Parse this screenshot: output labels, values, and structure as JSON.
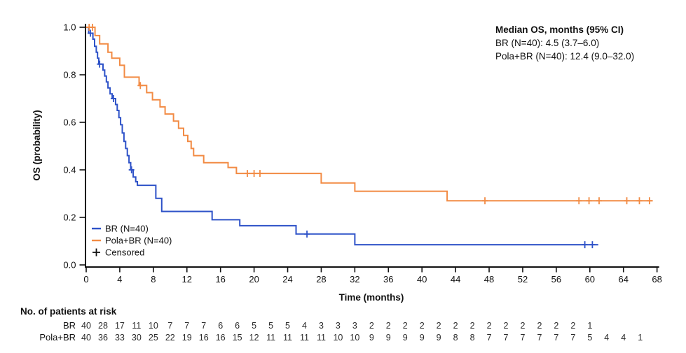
{
  "annotation": {
    "title": "Median OS, months (95% CI)",
    "line1": "BR (N=40): 4.5 (3.7–6.0)",
    "line2": "Pola+BR (N=40): 12.4 (9.0–32.0)"
  },
  "legend": {
    "censored_label": "Censored",
    "censored_color": "#111111"
  },
  "chart_data": {
    "type": "line",
    "subtype": "kaplan-meier-step",
    "title": "",
    "x_title": "Time (months)",
    "y_title": "OS (probability)",
    "xlim": [
      0,
      68
    ],
    "xtick_step": 4,
    "ylim": [
      0.0,
      1.0
    ],
    "ytick_step": 0.2,
    "grid": false,
    "legend_position": "inside-lower-left",
    "series": [
      {
        "key": "br",
        "name": "BR (N=40)",
        "color": "#2E52C8",
        "median_os_months": 4.5,
        "ci95": [
          3.7,
          6.0
        ],
        "steps": [
          [
            0,
            1.0
          ],
          [
            0.3,
            0.975
          ],
          [
            0.8,
            0.95
          ],
          [
            1.0,
            0.92
          ],
          [
            1.2,
            0.895
          ],
          [
            1.35,
            0.87
          ],
          [
            1.5,
            0.845
          ],
          [
            2.0,
            0.82
          ],
          [
            2.2,
            0.795
          ],
          [
            2.4,
            0.77
          ],
          [
            2.6,
            0.745
          ],
          [
            2.85,
            0.72
          ],
          [
            3.1,
            0.7
          ],
          [
            3.5,
            0.675
          ],
          [
            3.7,
            0.65
          ],
          [
            3.9,
            0.62
          ],
          [
            4.1,
            0.59
          ],
          [
            4.3,
            0.555
          ],
          [
            4.5,
            0.52
          ],
          [
            4.7,
            0.49
          ],
          [
            4.9,
            0.46
          ],
          [
            5.1,
            0.43
          ],
          [
            5.3,
            0.4
          ],
          [
            5.6,
            0.37
          ],
          [
            5.9,
            0.35
          ],
          [
            6.1,
            0.335
          ],
          [
            8.3,
            0.28
          ],
          [
            9.0,
            0.225
          ],
          [
            15.0,
            0.19
          ],
          [
            18.3,
            0.165
          ],
          [
            25.0,
            0.13
          ],
          [
            32.0,
            0.085
          ]
        ],
        "end_time": 61.0,
        "censors": [
          [
            0.5,
            0.975
          ],
          [
            1.6,
            0.845
          ],
          [
            3.25,
            0.7
          ],
          [
            5.4,
            0.4
          ],
          [
            26.3,
            0.13
          ],
          [
            59.4,
            0.085
          ],
          [
            60.3,
            0.085
          ]
        ]
      },
      {
        "key": "pola",
        "name": "Pola+BR (N=40)",
        "color": "#F28B44",
        "median_os_months": 12.4,
        "ci95": [
          9.0,
          32.0
        ],
        "steps": [
          [
            0,
            1.0
          ],
          [
            1.05,
            0.965
          ],
          [
            1.6,
            0.93
          ],
          [
            2.6,
            0.895
          ],
          [
            3.05,
            0.87
          ],
          [
            4.0,
            0.84
          ],
          [
            4.55,
            0.79
          ],
          [
            6.3,
            0.755
          ],
          [
            7.2,
            0.725
          ],
          [
            7.9,
            0.695
          ],
          [
            8.8,
            0.665
          ],
          [
            9.4,
            0.635
          ],
          [
            10.4,
            0.605
          ],
          [
            11.0,
            0.575
          ],
          [
            11.6,
            0.545
          ],
          [
            12.1,
            0.52
          ],
          [
            12.5,
            0.49
          ],
          [
            12.8,
            0.46
          ],
          [
            14.0,
            0.43
          ],
          [
            16.9,
            0.41
          ],
          [
            17.9,
            0.385
          ],
          [
            28.0,
            0.345
          ],
          [
            32.0,
            0.31
          ],
          [
            43.0,
            0.27
          ]
        ],
        "end_time": 67.5,
        "censors": [
          [
            0.35,
            1.0
          ],
          [
            0.75,
            1.0
          ],
          [
            6.45,
            0.755
          ],
          [
            19.2,
            0.385
          ],
          [
            20.0,
            0.385
          ],
          [
            20.7,
            0.385
          ],
          [
            47.5,
            0.27
          ],
          [
            58.7,
            0.27
          ],
          [
            59.9,
            0.27
          ],
          [
            61.1,
            0.27
          ],
          [
            64.4,
            0.27
          ],
          [
            65.9,
            0.27
          ],
          [
            67.1,
            0.27
          ]
        ]
      }
    ],
    "risk_table": {
      "title": "No. of patients at risk",
      "time_step": 2,
      "rows": [
        {
          "label": "BR",
          "color": "#2E52C8",
          "values": [
            40,
            28,
            17,
            11,
            10,
            7,
            7,
            7,
            6,
            6,
            5,
            5,
            5,
            4,
            3,
            3,
            3,
            2,
            2,
            2,
            2,
            2,
            2,
            2,
            2,
            2,
            2,
            2,
            2,
            2,
            1
          ]
        },
        {
          "label": "Pola+BR",
          "color": "#F28B44",
          "values": [
            40,
            36,
            33,
            30,
            25,
            22,
            19,
            16,
            16,
            15,
            12,
            11,
            11,
            11,
            11,
            10,
            10,
            9,
            9,
            9,
            9,
            9,
            8,
            8,
            7,
            7,
            7,
            7,
            7,
            7,
            5,
            4,
            4,
            1
          ]
        }
      ]
    }
  }
}
